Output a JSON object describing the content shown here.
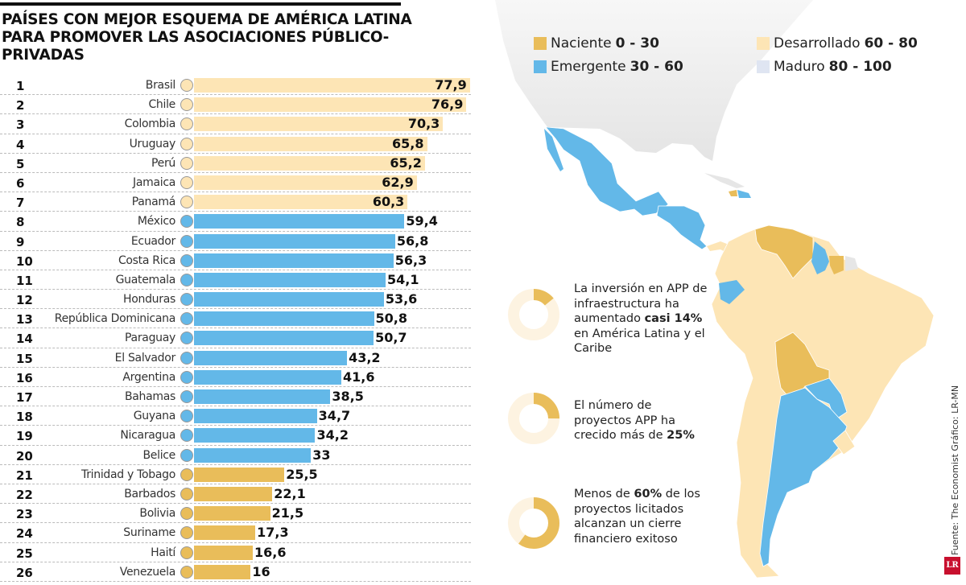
{
  "title": "PAÍSES CON MEJOR ESQUEMA DE AMÉRICA LATINA PARA PROMOVER LAS ASOCIACIONES PÚBLICO-PRIVADAS",
  "colors": {
    "naciente": "#e9bd5a",
    "emergente": "#63b8e8",
    "desarrollado": "#fde5b5",
    "maduro": "#dfe5f2",
    "other_land": "#e6e6e6"
  },
  "legend": [
    {
      "label": "Naciente",
      "range": "0 - 30",
      "color": "#e9bd5a"
    },
    {
      "label": "Emergente",
      "range": "30 - 60",
      "color": "#63b8e8"
    },
    {
      "label": "Desarrollado",
      "range": "60 - 80",
      "color": "#fde5b5"
    },
    {
      "label": "Maduro",
      "range": "80 - 100",
      "color": "#dfe5f2"
    }
  ],
  "chart_data": {
    "type": "bar",
    "orientation": "horizontal",
    "categories": [
      "Brasil",
      "Chile",
      "Colombia",
      "Uruguay",
      "Perú",
      "Jamaica",
      "Panamá",
      "México",
      "Ecuador",
      "Costa Rica",
      "Guatemala",
      "Honduras",
      "República Dominicana",
      "Paraguay",
      "El Salvador",
      "Argentina",
      "Bahamas",
      "Guyana",
      "Nicaragua",
      "Belice",
      "Trinidad y Tobago",
      "Barbados",
      "Bolivia",
      "Suriname",
      "Haití",
      "Venezuela"
    ],
    "ranks": [
      "1",
      "2",
      "3",
      "4",
      "5",
      "6",
      "7",
      "8",
      "9",
      "10",
      "11",
      "12",
      "13",
      "14",
      "15",
      "16",
      "17",
      "18",
      "19",
      "20",
      "21",
      "22",
      "23",
      "24",
      "25",
      "26"
    ],
    "values": [
      77.9,
      76.9,
      70.3,
      65.8,
      65.2,
      62.9,
      60.3,
      59.4,
      56.8,
      56.3,
      54.1,
      53.6,
      50.8,
      50.7,
      43.2,
      41.6,
      38.5,
      34.7,
      34.2,
      33,
      25.5,
      22.1,
      21.5,
      17.3,
      16.6,
      16
    ],
    "labels": [
      "77,9",
      "76,9",
      "70,3",
      "65,8",
      "65,2",
      "62,9",
      "60,3",
      "59,4",
      "56,8",
      "56,3",
      "54,1",
      "53,6",
      "50,8",
      "50,7",
      "43,2",
      "41,6",
      "38,5",
      "34,7",
      "34,2",
      "33",
      "25,5",
      "22,1",
      "21,5",
      "17,3",
      "16,6",
      "16"
    ],
    "xlim": [
      0,
      80
    ]
  },
  "stats": [
    {
      "percent": 14,
      "parts": [
        {
          "t": "La inversión en APP de infraestructura ha aumentado ",
          "b": false
        },
        {
          "t": "casi 14%",
          "b": true
        },
        {
          "t": " en América Latina y el Caribe",
          "b": false
        }
      ]
    },
    {
      "percent": 25,
      "parts": [
        {
          "t": "El número de proyectos APP ha crecido más de ",
          "b": false
        },
        {
          "t": "25%",
          "b": true
        }
      ]
    },
    {
      "percent": 60,
      "parts": [
        {
          "t": "Menos de ",
          "b": false
        },
        {
          "t": "60%",
          "b": true
        },
        {
          "t": " de los proyectos licitados alcanzan un cierre financiero exitoso",
          "b": false
        }
      ]
    }
  ],
  "credit": "Fuente: The Economist   Gráfico: LR-MN",
  "logo": "LR"
}
